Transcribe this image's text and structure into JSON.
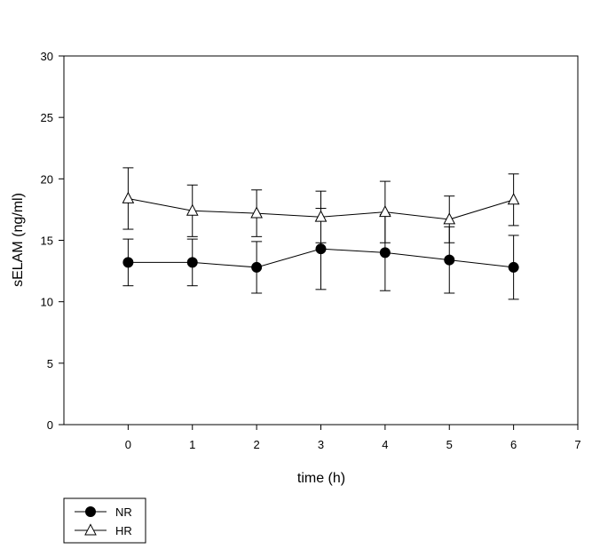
{
  "chart_data": {
    "type": "line",
    "title": "",
    "xlabel": "time (h)",
    "ylabel": "sELAM (ng/ml)",
    "xlim": [
      -1,
      7
    ],
    "ylim": [
      0,
      30
    ],
    "x_ticks": [
      0,
      1,
      2,
      3,
      4,
      5,
      6,
      7
    ],
    "y_ticks": [
      0,
      5,
      10,
      15,
      20,
      25,
      30
    ],
    "grid": false,
    "legend_position": "bottom-left, below plot",
    "series": [
      {
        "name": "NR",
        "marker": "filled-circle",
        "color": "#000000",
        "x": [
          0,
          1,
          2,
          3,
          4,
          5,
          6
        ],
        "y": [
          13.2,
          13.2,
          12.8,
          14.3,
          14.0,
          13.4,
          12.8
        ],
        "error": [
          1.9,
          1.9,
          2.1,
          3.3,
          3.1,
          2.7,
          2.6
        ]
      },
      {
        "name": "HR",
        "marker": "open-triangle",
        "color": "#000000",
        "x": [
          0,
          1,
          2,
          3,
          4,
          5,
          6
        ],
        "y": [
          18.4,
          17.4,
          17.2,
          16.9,
          17.3,
          16.7,
          18.3
        ],
        "error": [
          2.5,
          2.1,
          1.9,
          2.1,
          2.5,
          1.9,
          2.1
        ]
      }
    ]
  }
}
